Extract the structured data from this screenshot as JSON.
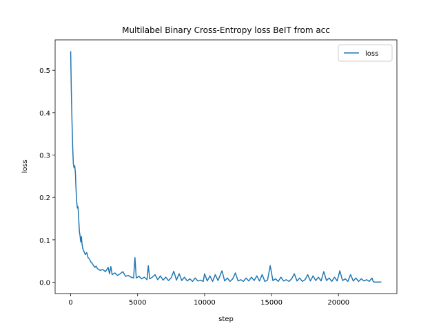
{
  "chart_data": {
    "type": "line",
    "title": "Multilabel Binary Cross-Entropy loss BeIT from acc",
    "x_label": "step",
    "y_label": "loss",
    "x": [
      0,
      50,
      100,
      150,
      200,
      250,
      300,
      350,
      400,
      450,
      500,
      550,
      600,
      650,
      700,
      750,
      800,
      850,
      900,
      1000,
      1100,
      1200,
      1300,
      1400,
      1500,
      1600,
      1700,
      1800,
      1900,
      2000,
      2200,
      2400,
      2600,
      2800,
      2900,
      3000,
      3100,
      3300,
      3500,
      3700,
      3900,
      4100,
      4300,
      4500,
      4700,
      4800,
      4900,
      5100,
      5300,
      5500,
      5700,
      5800,
      5900,
      6100,
      6300,
      6500,
      6700,
      6900,
      7100,
      7300,
      7500,
      7700,
      7900,
      8100,
      8300,
      8500,
      8700,
      8900,
      9100,
      9300,
      9500,
      9700,
      9900,
      10000,
      10200,
      10400,
      10600,
      10800,
      11000,
      11300,
      11500,
      11700,
      11900,
      12100,
      12300,
      12500,
      12700,
      12900,
      13100,
      13300,
      13500,
      13700,
      13900,
      14100,
      14300,
      14500,
      14700,
      14900,
      15100,
      15300,
      15500,
      15700,
      15900,
      16100,
      16300,
      16500,
      16700,
      16900,
      17100,
      17300,
      17500,
      17700,
      17900,
      18100,
      18300,
      18500,
      18700,
      18900,
      19100,
      19300,
      19500,
      19700,
      19900,
      20100,
      20300,
      20500,
      20700,
      20900,
      21100,
      21300,
      21500,
      21700,
      21900,
      22100,
      22300,
      22500,
      22600,
      22700,
      23200
    ],
    "series": [
      {
        "name": "loss",
        "color": "#1f77b4",
        "values": [
          0.545,
          0.45,
          0.38,
          0.32,
          0.28,
          0.27,
          0.275,
          0.26,
          0.22,
          0.19,
          0.175,
          0.178,
          0.15,
          0.12,
          0.11,
          0.095,
          0.108,
          0.09,
          0.08,
          0.072,
          0.065,
          0.07,
          0.058,
          0.055,
          0.048,
          0.045,
          0.04,
          0.035,
          0.038,
          0.032,
          0.028,
          0.03,
          0.025,
          0.035,
          0.02,
          0.037,
          0.018,
          0.022,
          0.016,
          0.02,
          0.025,
          0.014,
          0.016,
          0.012,
          0.01,
          0.058,
          0.01,
          0.014,
          0.008,
          0.012,
          0.006,
          0.039,
          0.008,
          0.012,
          0.018,
          0.006,
          0.015,
          0.005,
          0.012,
          0.004,
          0.01,
          0.026,
          0.005,
          0.02,
          0.004,
          0.012,
          0.003,
          0.008,
          0.002,
          0.01,
          0.003,
          0.005,
          0.002,
          0.02,
          0.003,
          0.015,
          0.002,
          0.018,
          0.004,
          0.027,
          0.003,
          0.01,
          0.002,
          0.008,
          0.022,
          0.003,
          0.006,
          0.002,
          0.01,
          0.003,
          0.012,
          0.004,
          0.015,
          0.003,
          0.018,
          0.002,
          0.005,
          0.039,
          0.004,
          0.008,
          0.002,
          0.012,
          0.003,
          0.006,
          0.002,
          0.008,
          0.02,
          0.003,
          0.01,
          0.002,
          0.006,
          0.018,
          0.003,
          0.015,
          0.004,
          0.012,
          0.003,
          0.025,
          0.004,
          0.01,
          0.002,
          0.012,
          0.003,
          0.027,
          0.004,
          0.008,
          0.002,
          0.018,
          0.003,
          0.01,
          0.002,
          0.008,
          0.003,
          0.006,
          0.002,
          0.01,
          0.001,
          0.0005,
          0.0005
        ]
      }
    ],
    "xlim": [
      -1160,
      24360
    ],
    "ylim": [
      -0.0267,
      0.5717
    ],
    "xticks": [
      0,
      5000,
      10000,
      15000,
      20000
    ],
    "yticks": [
      {
        "value": 0,
        "label": "0.0"
      },
      0.1,
      0.2,
      0.3,
      0.4,
      0.5
    ],
    "legend": "upper right"
  }
}
